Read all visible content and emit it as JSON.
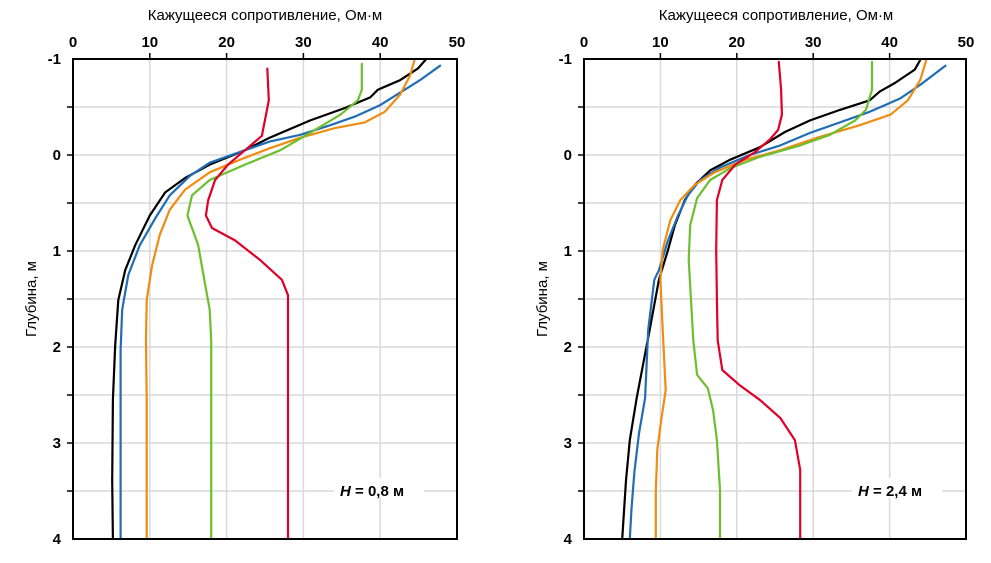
{
  "chart_data": [
    {
      "type": "line",
      "panel": "left",
      "xlabel": "Кажущееся сопротивление,  Ом·м",
      "ylabel": "Глубина,  м",
      "xlim": [
        0,
        50
      ],
      "ylim": [
        -1,
        4
      ],
      "y_inverted": true,
      "x_ticks": [
        "0",
        "10",
        "20",
        "30",
        "40",
        "50"
      ],
      "x_tick_values": [
        0,
        10,
        20,
        30,
        40,
        50
      ],
      "y_ticks": [
        "-1",
        "0",
        "1",
        "2",
        "3",
        "4"
      ],
      "y_tick_values": [
        -1,
        0,
        1,
        2,
        3,
        4
      ],
      "y_minor_tick_values": [
        -0.5,
        0.5,
        1.5,
        2.5,
        3.5
      ],
      "grid": true,
      "annotation": {
        "italic": "H",
        "text": " = 0,8 м"
      },
      "series": [
        {
          "name": "black",
          "color": "#000000",
          "points": [
            [
              46,
              -1.0
            ],
            [
              44.9,
              -0.9
            ],
            [
              42.6,
              -0.78
            ],
            [
              39.7,
              -0.68
            ],
            [
              38.7,
              -0.6
            ],
            [
              35.4,
              -0.49
            ],
            [
              30.9,
              -0.36
            ],
            [
              25.6,
              -0.18
            ],
            [
              22.4,
              -0.05
            ],
            [
              17.8,
              0.1
            ],
            [
              14.6,
              0.24
            ],
            [
              12,
              0.39
            ],
            [
              10,
              0.63
            ],
            [
              8.1,
              0.94
            ],
            [
              6.8,
              1.2
            ],
            [
              5.9,
              1.51
            ],
            [
              5.5,
              1.98
            ],
            [
              5.2,
              2.55
            ],
            [
              5.1,
              3.39
            ],
            [
              5.2,
              4.0
            ]
          ]
        },
        {
          "name": "blue",
          "color": "#1f6db5",
          "points": [
            [
              47.8,
              -0.93
            ],
            [
              45.2,
              -0.78
            ],
            [
              42.6,
              -0.65
            ],
            [
              40,
              -0.52
            ],
            [
              36.7,
              -0.4
            ],
            [
              33.5,
              -0.31
            ],
            [
              29.6,
              -0.21
            ],
            [
              25.6,
              -0.14
            ],
            [
              21.7,
              -0.03
            ],
            [
              17.8,
              0.08
            ],
            [
              15.2,
              0.22
            ],
            [
              12.6,
              0.42
            ],
            [
              10.7,
              0.66
            ],
            [
              8.7,
              0.94
            ],
            [
              7.2,
              1.25
            ],
            [
              6.4,
              1.61
            ],
            [
              6.2,
              2.03
            ],
            [
              6.2,
              4.0
            ]
          ]
        },
        {
          "name": "orange",
          "color": "#ef8c12",
          "points": [
            [
              44.5,
              -1.0
            ],
            [
              43.9,
              -0.83
            ],
            [
              42.6,
              -0.63
            ],
            [
              40.6,
              -0.45
            ],
            [
              38,
              -0.34
            ],
            [
              34.1,
              -0.28
            ],
            [
              29.6,
              -0.18
            ],
            [
              25.6,
              -0.07
            ],
            [
              21.7,
              0.05
            ],
            [
              17.8,
              0.18
            ],
            [
              14.6,
              0.36
            ],
            [
              12.6,
              0.57
            ],
            [
              11.3,
              0.83
            ],
            [
              10.3,
              1.15
            ],
            [
              9.6,
              1.51
            ],
            [
              9.5,
              1.93
            ],
            [
              9.6,
              2.55
            ],
            [
              9.6,
              4.0
            ]
          ]
        },
        {
          "name": "green",
          "color": "#6cbf2f",
          "points": [
            [
              37.6,
              -0.95
            ],
            [
              37.6,
              -0.68
            ],
            [
              37.1,
              -0.57
            ],
            [
              34.8,
              -0.42
            ],
            [
              31.5,
              -0.26
            ],
            [
              27,
              -0.05
            ],
            [
              22.4,
              0.1
            ],
            [
              17.8,
              0.26
            ],
            [
              15.5,
              0.42
            ],
            [
              14.9,
              0.63
            ],
            [
              15.5,
              0.76
            ],
            [
              16.3,
              0.94
            ],
            [
              17.1,
              1.3
            ],
            [
              17.8,
              1.61
            ],
            [
              18,
              1.93
            ],
            [
              18,
              4.0
            ]
          ]
        },
        {
          "name": "red",
          "color": "#e0002a",
          "points": [
            [
              25.3,
              -0.9
            ],
            [
              25.5,
              -0.57
            ],
            [
              24.6,
              -0.2
            ],
            [
              22.4,
              -0.05
            ],
            [
              20.2,
              0.1
            ],
            [
              18.5,
              0.26
            ],
            [
              17.6,
              0.47
            ],
            [
              17.3,
              0.63
            ],
            [
              18.1,
              0.76
            ],
            [
              21.1,
              0.89
            ],
            [
              24.3,
              1.09
            ],
            [
              27.2,
              1.3
            ],
            [
              28,
              1.46
            ],
            [
              28,
              4.0
            ]
          ]
        }
      ]
    },
    {
      "type": "line",
      "panel": "right",
      "xlabel": "Кажущееся сопротивление,  Ом·м",
      "ylabel": "Глубина,  м",
      "xlim": [
        0,
        50
      ],
      "ylim": [
        -1,
        4
      ],
      "y_inverted": true,
      "x_ticks": [
        "0",
        "10",
        "20",
        "30",
        "40",
        "50"
      ],
      "x_tick_values": [
        0,
        10,
        20,
        30,
        40,
        50
      ],
      "y_ticks": [
        "-1",
        "0",
        "1",
        "2",
        "3",
        "4"
      ],
      "y_tick_values": [
        -1,
        0,
        1,
        2,
        3,
        4
      ],
      "y_minor_tick_values": [
        -0.5,
        0.5,
        1.5,
        2.5,
        3.5
      ],
      "grid": true,
      "annotation": {
        "italic": "H",
        "text": " = 2,4 м"
      },
      "series": [
        {
          "name": "black",
          "color": "#000000",
          "points": [
            [
              44,
              -0.99
            ],
            [
              43.3,
              -0.89
            ],
            [
              40.7,
              -0.75
            ],
            [
              38.7,
              -0.66
            ],
            [
              37.4,
              -0.57
            ],
            [
              33.5,
              -0.47
            ],
            [
              29.6,
              -0.36
            ],
            [
              26.3,
              -0.24
            ],
            [
              23,
              -0.08
            ],
            [
              19.1,
              0.05
            ],
            [
              16.5,
              0.16
            ],
            [
              14.5,
              0.31
            ],
            [
              13.2,
              0.47
            ],
            [
              11.9,
              0.73
            ],
            [
              11,
              0.99
            ],
            [
              9.8,
              1.3
            ],
            [
              8.6,
              1.82
            ],
            [
              6.9,
              2.53
            ],
            [
              6,
              2.97
            ],
            [
              5.5,
              3.39
            ],
            [
              5,
              4.0
            ]
          ]
        },
        {
          "name": "blue",
          "color": "#1f6db5",
          "points": [
            [
              47.3,
              -0.93
            ],
            [
              44,
              -0.73
            ],
            [
              41.4,
              -0.59
            ],
            [
              37.4,
              -0.45
            ],
            [
              33.5,
              -0.34
            ],
            [
              29.6,
              -0.23
            ],
            [
              25.7,
              -0.1
            ],
            [
              21.7,
              0
            ],
            [
              17.8,
              0.13
            ],
            [
              15.2,
              0.26
            ],
            [
              13.6,
              0.42
            ],
            [
              12.3,
              0.63
            ],
            [
              11,
              0.89
            ],
            [
              9.8,
              1.2
            ],
            [
              9.2,
              1.3
            ],
            [
              8.4,
              1.82
            ],
            [
              8.0,
              2.53
            ],
            [
              7.2,
              2.9
            ],
            [
              6.6,
              3.3
            ],
            [
              6.2,
              3.7
            ],
            [
              6.0,
              4.0
            ]
          ]
        },
        {
          "name": "orange",
          "color": "#ef8c12",
          "points": [
            [
              44.8,
              -0.99
            ],
            [
              44,
              -0.78
            ],
            [
              42.4,
              -0.57
            ],
            [
              40.1,
              -0.42
            ],
            [
              36.1,
              -0.31
            ],
            [
              30.9,
              -0.19
            ],
            [
              25.7,
              -0.05
            ],
            [
              21.1,
              0.05
            ],
            [
              17.1,
              0.18
            ],
            [
              14.5,
              0.31
            ],
            [
              12.6,
              0.47
            ],
            [
              11.3,
              0.68
            ],
            [
              10.3,
              0.99
            ],
            [
              10,
              1.3
            ],
            [
              10.3,
              1.82
            ],
            [
              10.7,
              2.45
            ],
            [
              10.1,
              2.76
            ],
            [
              9.6,
              3.07
            ],
            [
              9.4,
              3.5
            ],
            [
              9.4,
              4.0
            ]
          ]
        },
        {
          "name": "green",
          "color": "#6cbf2f",
          "points": [
            [
              37.7,
              -0.97
            ],
            [
              37.7,
              -0.68
            ],
            [
              36.9,
              -0.47
            ],
            [
              35.5,
              -0.36
            ],
            [
              32.2,
              -0.21
            ],
            [
              28.3,
              -0.1
            ],
            [
              23,
              0.02
            ],
            [
              19.1,
              0.14
            ],
            [
              16.5,
              0.26
            ],
            [
              14.8,
              0.45
            ],
            [
              13.9,
              0.73
            ],
            [
              13.7,
              1.09
            ],
            [
              14,
              1.51
            ],
            [
              14.3,
              1.93
            ],
            [
              14.8,
              2.29
            ],
            [
              16.2,
              2.43
            ],
            [
              16.9,
              2.66
            ],
            [
              17.4,
              2.97
            ],
            [
              17.8,
              3.49
            ],
            [
              17.8,
              4.0
            ]
          ]
        },
        {
          "name": "red",
          "color": "#e0002a",
          "points": [
            [
              25.5,
              -0.97
            ],
            [
              25.8,
              -0.68
            ],
            [
              25.9,
              -0.42
            ],
            [
              25.4,
              -0.26
            ],
            [
              24.3,
              -0.16
            ],
            [
              22.4,
              -0.03
            ],
            [
              19.8,
              0.1
            ],
            [
              18.1,
              0.26
            ],
            [
              17.4,
              0.47
            ],
            [
              17.3,
              0.99
            ],
            [
              17.4,
              1.51
            ],
            [
              17.5,
              1.93
            ],
            [
              18.1,
              2.24
            ],
            [
              20.4,
              2.4
            ],
            [
              23,
              2.55
            ],
            [
              25.7,
              2.74
            ],
            [
              27.6,
              2.97
            ],
            [
              28.3,
              3.28
            ],
            [
              28.3,
              4.0
            ]
          ]
        }
      ]
    }
  ]
}
